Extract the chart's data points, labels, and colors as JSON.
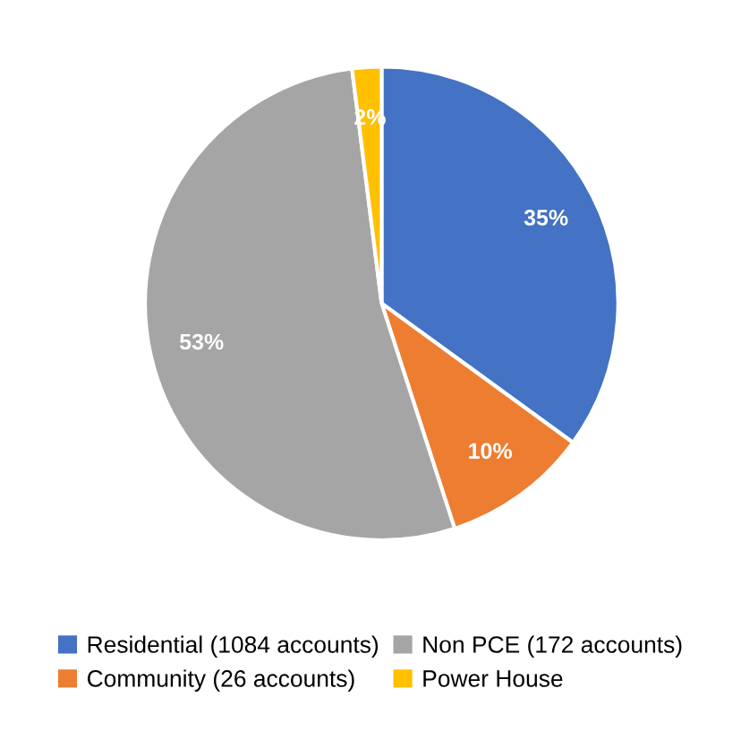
{
  "chart_data": {
    "type": "pie",
    "categories": [
      "Residential (1084 accounts)",
      "Community (26 accounts)",
      "Non PCE (172 accounts)",
      "Power House"
    ],
    "values": [
      35,
      10,
      53,
      2
    ],
    "colors": [
      "#4472c4",
      "#ed7d31",
      "#a5a5a5",
      "#ffc000"
    ],
    "value_labels": [
      "35%",
      "10%",
      "53%",
      "2%"
    ],
    "legend": "bottom"
  }
}
